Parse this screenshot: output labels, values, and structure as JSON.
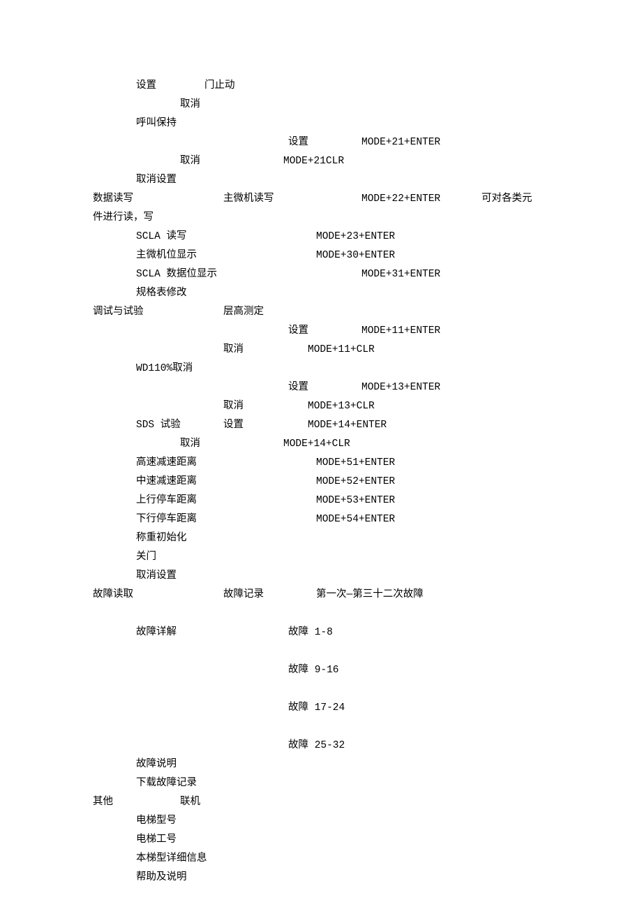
{
  "rows": [
    {
      "cells": [
        {
          "col": "c1",
          "text": "设置"
        },
        {
          "col": "c2",
          "text": "门止动"
        }
      ]
    },
    {
      "cells": [
        {
          "col": "c1b",
          "text": "取消"
        }
      ]
    },
    {
      "cells": [
        {
          "col": "c1",
          "text": "呼叫保持"
        }
      ]
    },
    {
      "cells": [
        {
          "col": "c3",
          "text": "设置"
        },
        {
          "col": "c4",
          "text": "MODE+21+ENTER"
        }
      ]
    },
    {
      "cells": [
        {
          "col": "c1b",
          "text": "取消"
        },
        {
          "col": "c3a",
          "text": "MODE+21CLR"
        }
      ]
    },
    {
      "cells": [
        {
          "col": "c1",
          "text": "取消设置"
        }
      ]
    },
    {
      "cells": [
        {
          "col": "c0",
          "text": "数据读写"
        },
        {
          "col": "c2b",
          "text": "主微机读写"
        },
        {
          "col": "c4",
          "text": "MODE+22+ENTER"
        },
        {
          "col": "c5",
          "text": "可对各类元"
        }
      ]
    },
    {
      "cells": [
        {
          "col": "c0",
          "text": "件进行读，写"
        }
      ]
    },
    {
      "cells": [
        {
          "col": "c1",
          "text": "SCLA 读写"
        },
        {
          "col": "c3b",
          "text": "MODE+23+ENTER"
        }
      ]
    },
    {
      "cells": [
        {
          "col": "c1",
          "text": "主微机位显示"
        },
        {
          "col": "c3b",
          "text": "MODE+30+ENTER"
        }
      ]
    },
    {
      "cells": [
        {
          "col": "c1",
          "text": "SCLA 数据位显示"
        },
        {
          "col": "c4",
          "text": "MODE+31+ENTER"
        }
      ]
    },
    {
      "cells": [
        {
          "col": "c1",
          "text": "规格表修改"
        }
      ]
    },
    {
      "cells": [
        {
          "col": "c0",
          "text": "调试与试验"
        },
        {
          "col": "c2b",
          "text": "层高测定"
        }
      ]
    },
    {
      "cells": [
        {
          "col": "c3",
          "text": "设置"
        },
        {
          "col": "c4",
          "text": "MODE+11+ENTER"
        }
      ]
    },
    {
      "cells": [
        {
          "col": "c2b",
          "text": "取消"
        },
        {
          "col": "c4a",
          "text": "MODE+11+CLR"
        }
      ]
    },
    {
      "cells": [
        {
          "col": "c1",
          "text": "WD110%取消"
        }
      ]
    },
    {
      "cells": [
        {
          "col": "c3",
          "text": "设置"
        },
        {
          "col": "c4",
          "text": "MODE+13+ENTER"
        }
      ]
    },
    {
      "cells": [
        {
          "col": "c2b",
          "text": "取消"
        },
        {
          "col": "c4a",
          "text": "MODE+13+CLR"
        }
      ]
    },
    {
      "cells": [
        {
          "col": "c1",
          "text": "SDS 试验"
        },
        {
          "col": "c2b",
          "text": "设置"
        },
        {
          "col": "c4a",
          "text": "MODE+14+ENTER"
        }
      ]
    },
    {
      "cells": [
        {
          "col": "c1b",
          "text": "取消"
        },
        {
          "col": "c3a",
          "text": "MODE+14+CLR"
        }
      ]
    },
    {
      "cells": [
        {
          "col": "c1",
          "text": "高速减速距离"
        },
        {
          "col": "c3b",
          "text": "MODE+51+ENTER"
        }
      ]
    },
    {
      "cells": [
        {
          "col": "c1",
          "text": "中速减速距离"
        },
        {
          "col": "c3b",
          "text": "MODE+52+ENTER"
        }
      ]
    },
    {
      "cells": [
        {
          "col": "c1",
          "text": "上行停车距离"
        },
        {
          "col": "c3b",
          "text": "MODE+53+ENTER"
        }
      ]
    },
    {
      "cells": [
        {
          "col": "c1",
          "text": "下行停车距离"
        },
        {
          "col": "c3b",
          "text": "MODE+54+ENTER"
        }
      ]
    },
    {
      "cells": [
        {
          "col": "c1",
          "text": "称重初始化"
        }
      ]
    },
    {
      "cells": [
        {
          "col": "c1",
          "text": "关门"
        }
      ]
    },
    {
      "cells": [
        {
          "col": "c1",
          "text": "取消设置"
        }
      ]
    },
    {
      "cells": [
        {
          "col": "c0",
          "text": "故障读取"
        },
        {
          "col": "c2b",
          "text": "故障记录"
        },
        {
          "col": "c3b",
          "text": "第一次—第三十二次故障"
        }
      ]
    },
    {
      "cells": []
    },
    {
      "cells": [
        {
          "col": "c1",
          "text": "故障详解"
        },
        {
          "col": "c3",
          "text": "故障 1-8"
        }
      ]
    },
    {
      "cells": []
    },
    {
      "cells": [
        {
          "col": "c3",
          "text": "故障 9-16"
        }
      ]
    },
    {
      "cells": []
    },
    {
      "cells": [
        {
          "col": "c3",
          "text": "故障 17-24"
        }
      ]
    },
    {
      "cells": []
    },
    {
      "cells": [
        {
          "col": "c3",
          "text": "故障 25-32"
        }
      ]
    },
    {
      "cells": [
        {
          "col": "c1",
          "text": "故障说明"
        }
      ]
    },
    {
      "cells": [
        {
          "col": "c1",
          "text": "下载故障记录"
        }
      ]
    },
    {
      "cells": [
        {
          "col": "c0",
          "text": "其他"
        },
        {
          "col": "c1b",
          "text": "联机"
        }
      ]
    },
    {
      "cells": [
        {
          "col": "c1",
          "text": "电梯型号"
        }
      ]
    },
    {
      "cells": [
        {
          "col": "c1",
          "text": "电梯工号"
        }
      ]
    },
    {
      "cells": [
        {
          "col": "c1",
          "text": "本梯型详细信息"
        }
      ]
    },
    {
      "cells": [
        {
          "col": "c1",
          "text": "帮助及说明"
        }
      ]
    }
  ]
}
